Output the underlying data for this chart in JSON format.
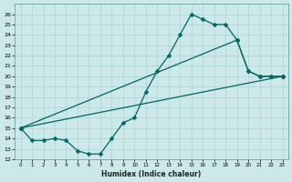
{
  "xlabel": "Humidex (Indice chaleur)",
  "bg_color": "#cce8e8",
  "line_color": "#006666",
  "grid_color": "#b0d8d8",
  "xlim": [
    -0.5,
    23.5
  ],
  "ylim": [
    12,
    27
  ],
  "xticks": [
    0,
    1,
    2,
    3,
    4,
    5,
    6,
    7,
    8,
    9,
    10,
    11,
    12,
    13,
    14,
    15,
    16,
    17,
    18,
    19,
    20,
    21,
    22,
    23
  ],
  "yticks": [
    12,
    13,
    14,
    15,
    16,
    17,
    18,
    19,
    20,
    21,
    22,
    23,
    24,
    25,
    26
  ],
  "line1_x": [
    0,
    1,
    2,
    3,
    4,
    5,
    6,
    7,
    8,
    9,
    10,
    11,
    12,
    13,
    14,
    15,
    16,
    17,
    18,
    19,
    20,
    21,
    22,
    23
  ],
  "line1_y": [
    15.0,
    13.8,
    13.8,
    14.0,
    13.8,
    12.8,
    12.5,
    12.5,
    14.0,
    15.5,
    16.0,
    18.5,
    20.5,
    22.0,
    24.0,
    26.0,
    25.5,
    25.0,
    25.0,
    23.5,
    20.5,
    20.0,
    20.0,
    20.0
  ],
  "line2_x": [
    0,
    23
  ],
  "line2_y": [
    15.0,
    20.0
  ],
  "line3_x": [
    0,
    19,
    20,
    21,
    22,
    23
  ],
  "line3_y": [
    15.0,
    23.5,
    20.5,
    20.0,
    20.0,
    20.0
  ],
  "markersize": 2.5
}
